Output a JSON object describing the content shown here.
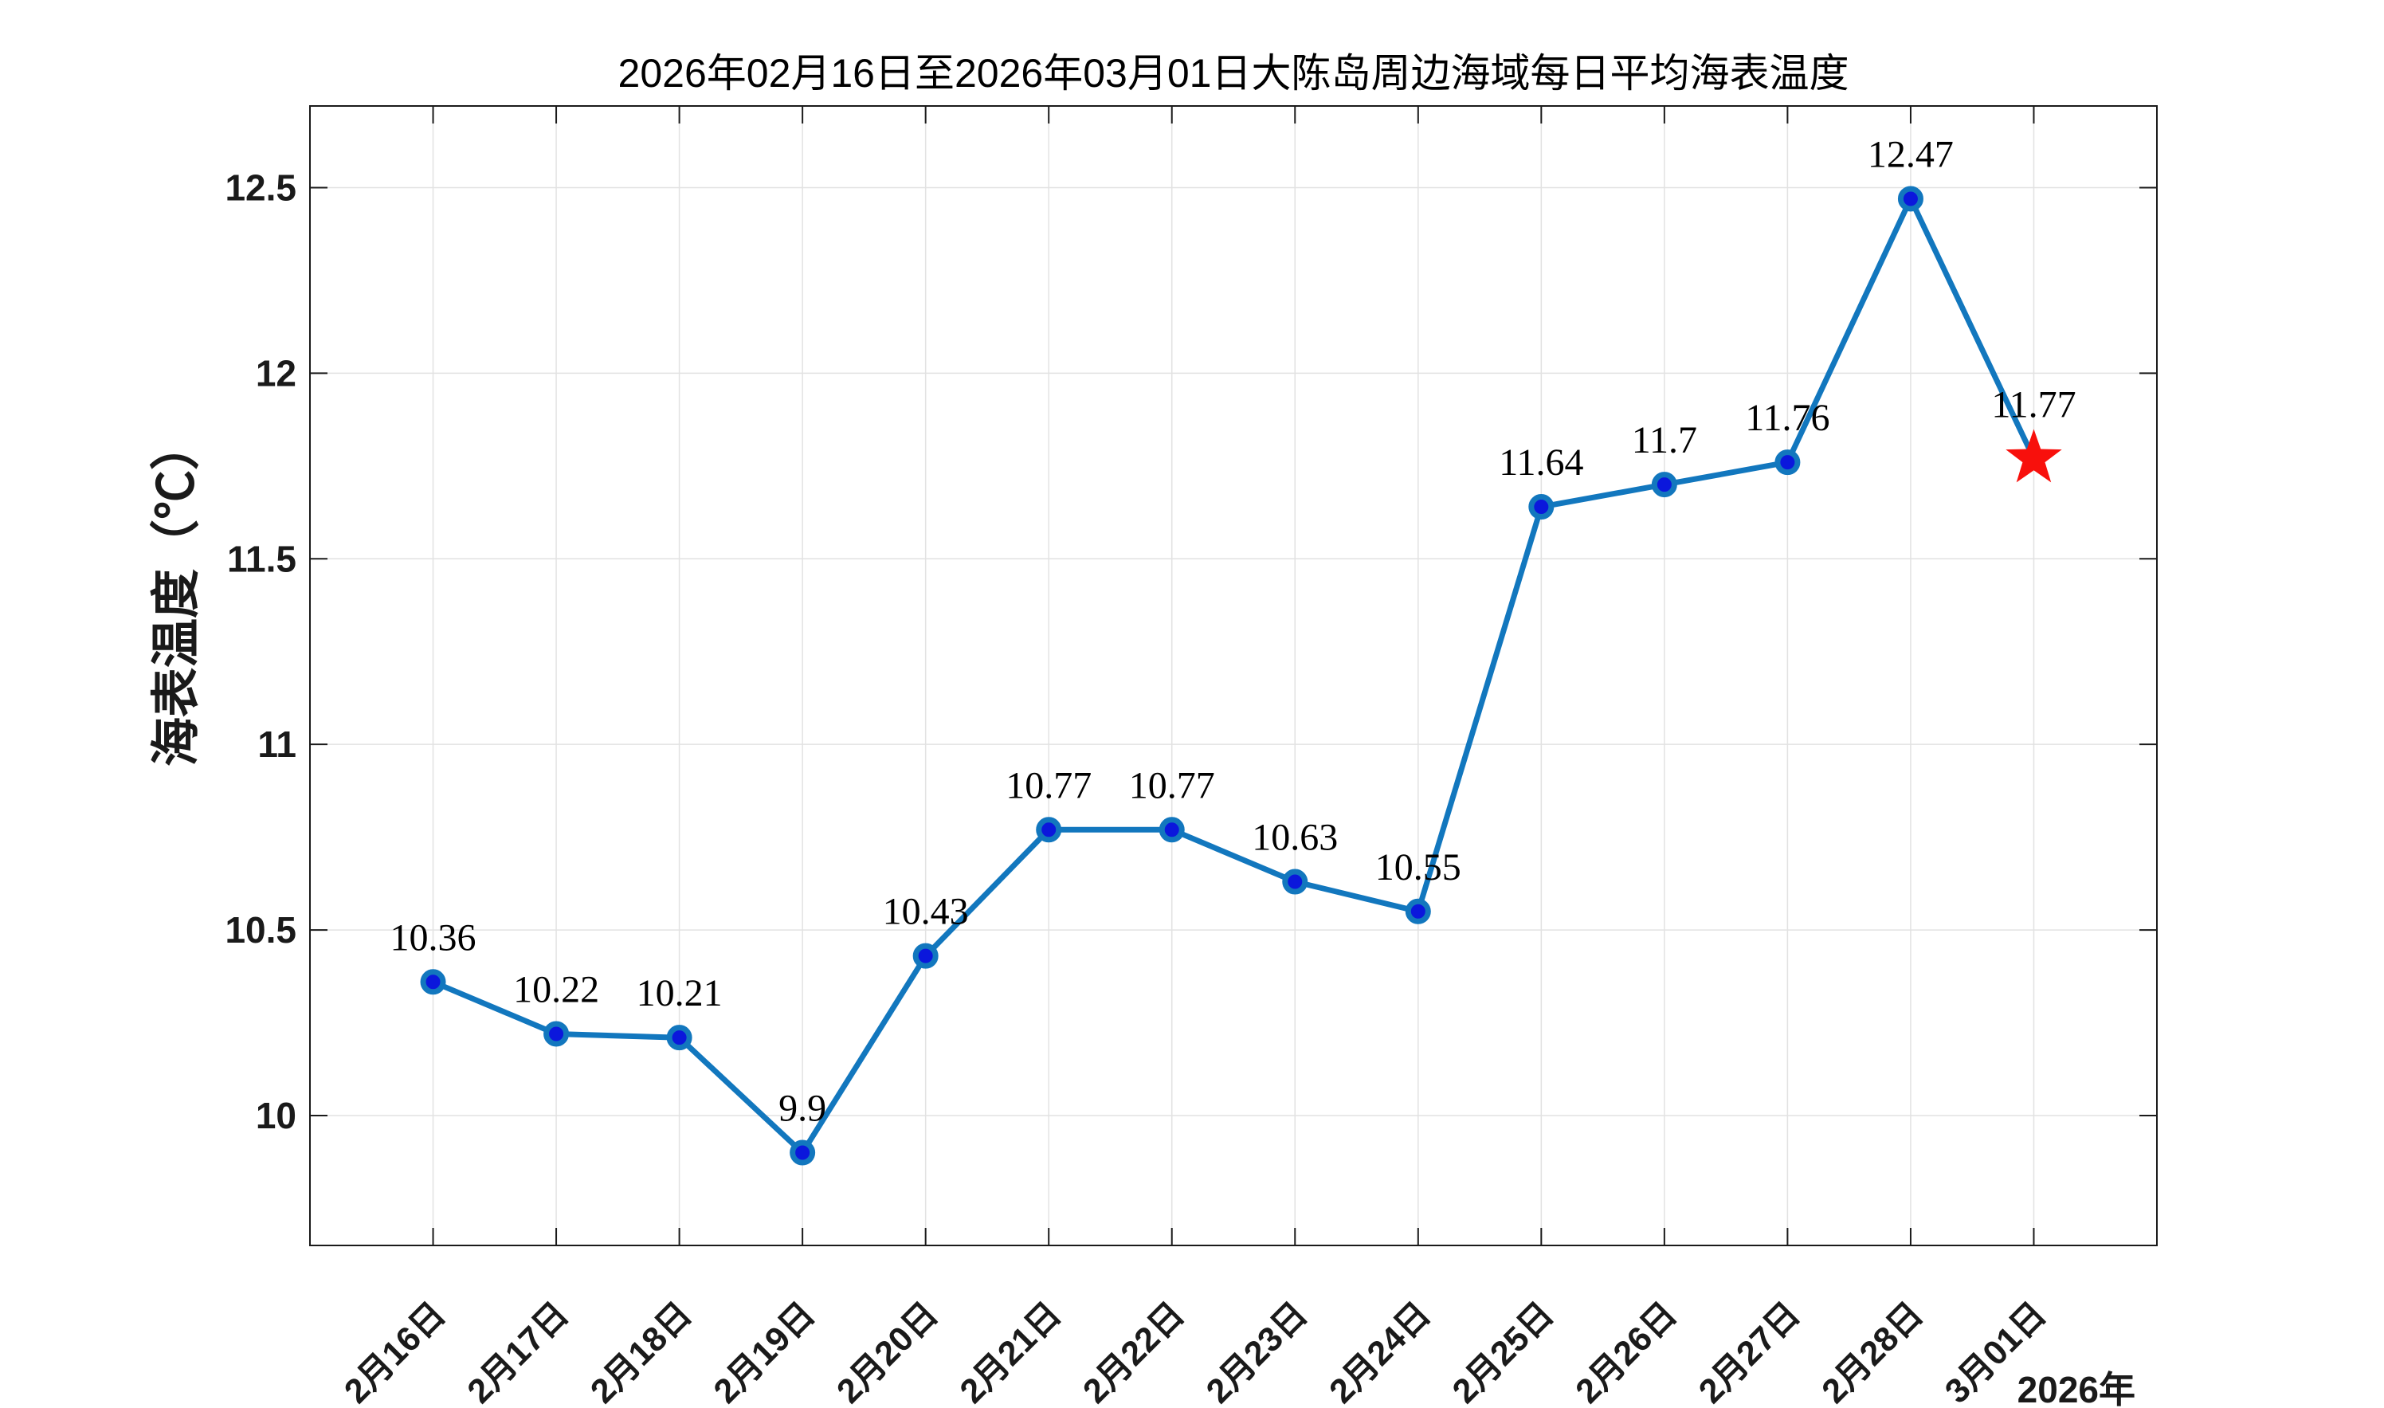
{
  "chart_data": {
    "type": "line",
    "title": "2026年02月16日至2026年03月01日大陈岛周边海域每日平均海表温度",
    "ylabel": "海表温度（℃）",
    "corner_label": "2026年",
    "categories": [
      "2月16日",
      "2月17日",
      "2月18日",
      "2月19日",
      "2月20日",
      "2月21日",
      "2月22日",
      "2月23日",
      "2月24日",
      "2月25日",
      "2月26日",
      "2月27日",
      "2月28日",
      "3月01日"
    ],
    "values": [
      10.36,
      10.22,
      10.21,
      9.9,
      10.43,
      10.77,
      10.77,
      10.63,
      10.55,
      11.64,
      11.7,
      11.76,
      12.47,
      11.77
    ],
    "value_labels": [
      "10.36",
      "10.22",
      "10.21",
      "9.9",
      "10.43",
      "10.77",
      "10.77",
      "10.63",
      "10.55",
      "11.64",
      "11.7",
      "11.76",
      "12.47",
      "11.77"
    ],
    "highlight": {
      "index": 13,
      "marker": "star",
      "color": "#F8100C"
    },
    "y_tick_labels": [
      "10",
      "10.5",
      "11",
      "11.5",
      "12",
      "12.5"
    ],
    "y_tick_values": [
      10,
      10.5,
      11,
      11.5,
      12,
      12.5
    ],
    "ylim": [
      9.65,
      12.72
    ],
    "grid": true,
    "legend_position": "none",
    "colors": {
      "line": "#1277BE",
      "marker_face": "#0B17DC",
      "grid": "#E2E2E2",
      "axis": "#1A1A1A",
      "tick_label": "#1A1A1A",
      "title": "#000000",
      "background": "#FFFFFF"
    }
  }
}
